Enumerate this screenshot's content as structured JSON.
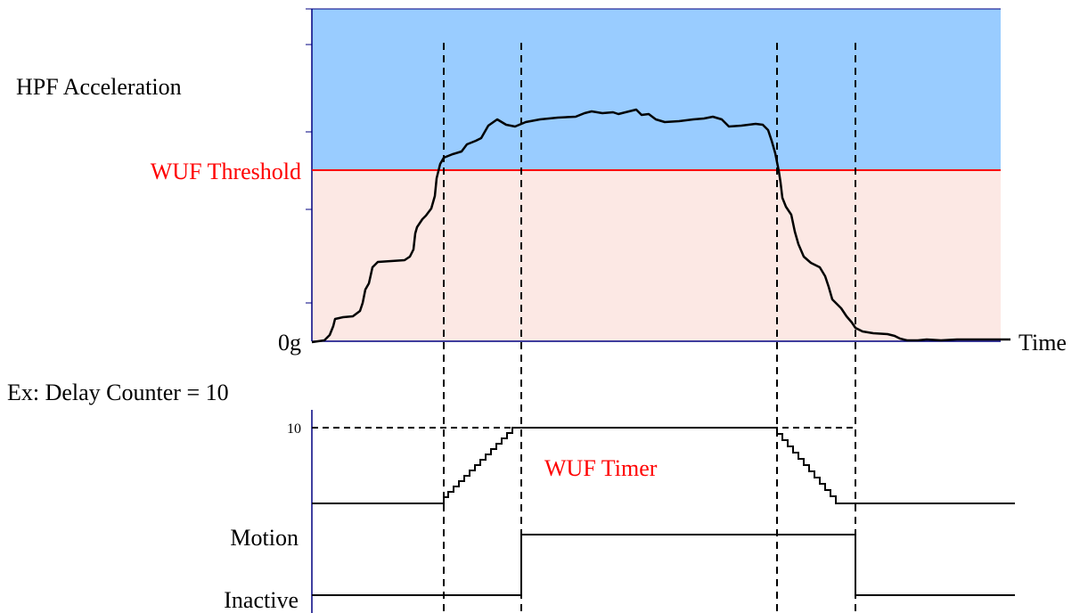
{
  "labels": {
    "hpf_acceleration": "HPF Acceleration",
    "wuf_threshold": "WUF Threshold",
    "zero_g": "0g",
    "time": "Time",
    "delay_counter": "Ex: Delay Counter = 10",
    "timer_max": "10",
    "wuf_timer": "WUF Timer",
    "motion": "Motion",
    "inactive": "Inactive"
  },
  "colors": {
    "above_threshold_region": "#99ccff",
    "below_threshold_region": "#fce8e4",
    "threshold_line": "#ff0000",
    "axis": "#000080",
    "trace": "#000000",
    "red_text": "#ff0000"
  }
}
